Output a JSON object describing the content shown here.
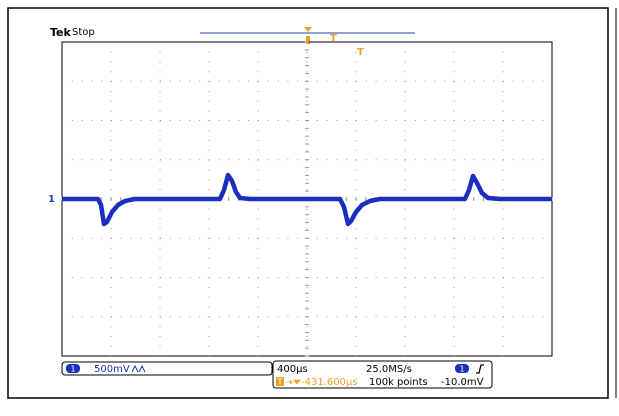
{
  "header": {
    "brand": "Tek",
    "status": "Stop"
  },
  "markers": {
    "trigger_top": "T",
    "trigger_level": "T",
    "channel": "1"
  },
  "status_bar": {
    "channel_badge": "1",
    "vertical_scale": "500mV",
    "time_scale": "400µs",
    "sample_rate": "25.0MS/s",
    "trigger_source": "1",
    "trigger_badge": "T",
    "trigger_position": "-431.600µs",
    "record_length": "100k points",
    "trigger_level": "-10.0mV"
  }
}
